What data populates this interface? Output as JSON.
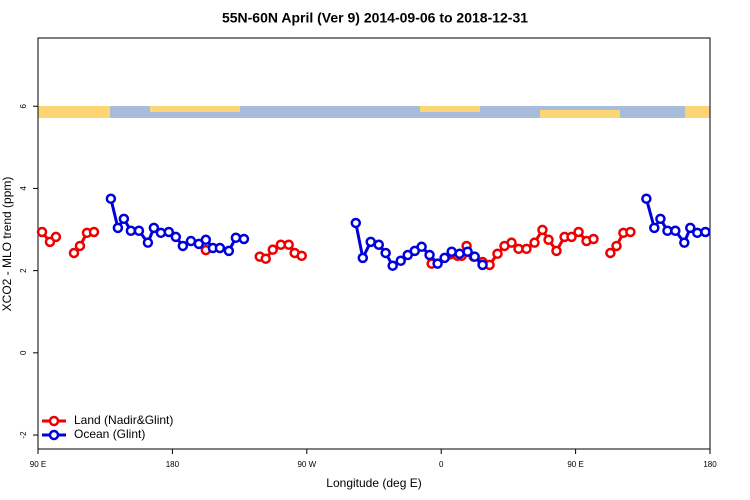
{
  "chart_data": {
    "type": "line",
    "title": "55N-60N April (Ver 9)   2014-09-06 to 2018-12-31",
    "x_label": "Longitude (deg E)",
    "y_label": "XCO2 - MLO trend (ppm)",
    "xlim": [
      90,
      540
    ],
    "xticks": [
      {
        "value": 90,
        "label": "90 E"
      },
      {
        "value": 180,
        "label": "180"
      },
      {
        "value": 270,
        "label": "90 W"
      },
      {
        "value": 360,
        "label": "0"
      },
      {
        "value": 450,
        "label": "90 E"
      },
      {
        "value": 540,
        "label": "180"
      }
    ],
    "ylim": [
      -2.34,
      7.66
    ],
    "yticks": [
      -2,
      0,
      2,
      4,
      6
    ],
    "legend": "bottom-left",
    "series": [
      {
        "name": "Land (Nadir&Glint)",
        "color": "#ee0000",
        "x": [
          92.7,
          98.0,
          102.0,
          null,
          114.1,
          118.1,
          122.8,
          127.5,
          null,
          202.4,
          null,
          238.5,
          242.5,
          247.2,
          252.6,
          257.9,
          261.9,
          266.6,
          null,
          353.6,
          371.0,
          373.7,
          377.0,
          381.7,
          387.7,
          392.4,
          397.7,
          402.4,
          407.1,
          411.8,
          417.1,
          422.5,
          427.8,
          431.9,
          437.2,
          442.6,
          447.3,
          452.0,
          457.3,
          462.0,
          null,
          473.3,
          477.4,
          482.0,
          486.7
        ],
        "values": [
          2.94,
          2.7,
          2.82,
          null,
          2.43,
          2.6,
          2.92,
          2.94,
          null,
          2.5,
          null,
          2.34,
          2.29,
          2.51,
          2.63,
          2.63,
          2.43,
          2.36,
          null,
          2.17,
          2.36,
          2.36,
          2.6,
          2.34,
          2.21,
          2.14,
          2.41,
          2.6,
          2.68,
          2.53,
          2.53,
          2.68,
          2.99,
          2.75,
          2.48,
          2.82,
          2.82,
          2.94,
          2.72,
          2.77,
          null,
          2.43,
          2.6,
          2.92,
          2.94
        ]
      },
      {
        "name": "Ocean (Glint)",
        "color": "#0000dd",
        "x": [
          138.8,
          143.5,
          147.5,
          152.2,
          157.6,
          163.6,
          167.6,
          172.3,
          177.6,
          182.3,
          187.0,
          192.4,
          197.7,
          202.4,
          207.1,
          211.8,
          217.8,
          222.5,
          227.9,
          null,
          302.8,
          307.5,
          312.8,
          318.2,
          322.8,
          327.5,
          332.9,
          337.6,
          342.3,
          346.9,
          352.2,
          357.6,
          362.3,
          367.0,
          372.3,
          377.7,
          382.4,
          387.7,
          null,
          497.4,
          502.7,
          506.8,
          511.5,
          516.8,
          522.8,
          526.8,
          531.5,
          536.9
        ],
        "values": [
          3.75,
          3.04,
          3.26,
          2.97,
          2.97,
          2.68,
          3.04,
          2.92,
          2.94,
          2.82,
          2.6,
          2.72,
          2.65,
          2.75,
          2.55,
          2.55,
          2.48,
          2.8,
          2.77,
          null,
          3.16,
          2.31,
          2.7,
          2.63,
          2.43,
          2.12,
          2.24,
          2.38,
          2.48,
          2.58,
          2.38,
          2.17,
          2.31,
          2.46,
          2.41,
          2.46,
          2.34,
          2.14,
          null,
          3.75,
          3.04,
          3.26,
          2.97,
          2.97,
          2.68,
          3.04,
          2.92,
          2.94
        ]
      }
    ]
  }
}
